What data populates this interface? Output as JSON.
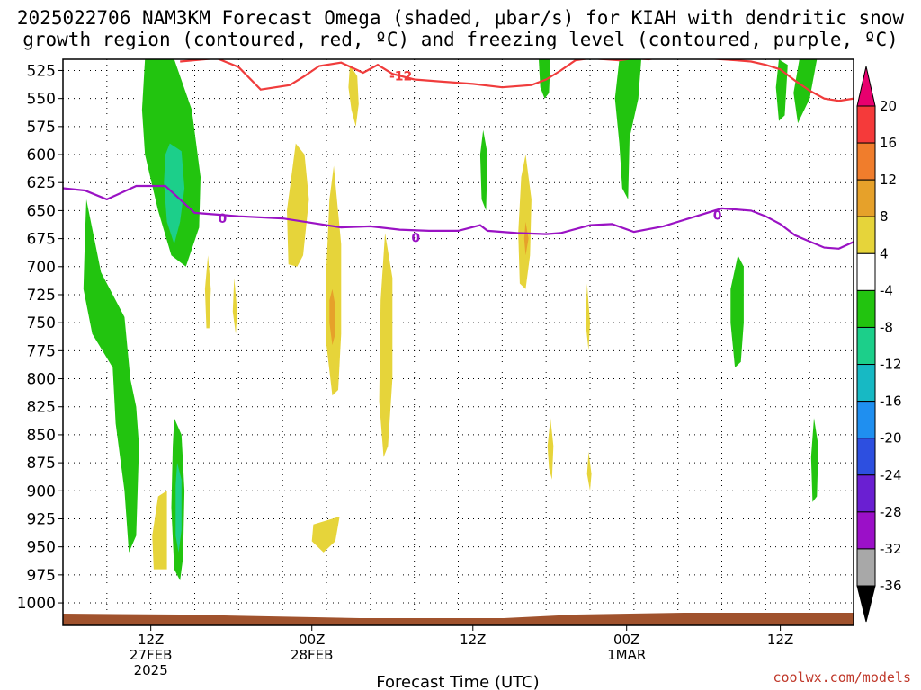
{
  "header": {
    "title_line1": "2025022706 NAM3KM Forecast Omega (shaded, μbar/s) for KIAH with dendritic snow",
    "title_line2": "growth region (contoured, red, ºC) and freezing level (contoured, purple, ºC)"
  },
  "footer": {
    "credit": "coolwx.com/models"
  },
  "chart_data": {
    "type": "heatmap",
    "title": "2025022706 NAM3KM Forecast Omega (shaded, μbar/s) for KIAH with dendritic snow growth region (contoured, red, ºC) and freezing level (contoured, purple, ºC)",
    "xlabel": "Forecast Time (UTC)",
    "ylabel": "",
    "y_axis": {
      "scale": "pressure (inverted)",
      "ylim": [
        1020,
        515
      ],
      "tick_labels": [
        "525",
        "550",
        "575",
        "600",
        "625",
        "650",
        "675",
        "700",
        "725",
        "750",
        "775",
        "800",
        "825",
        "850",
        "875",
        "900",
        "925",
        "950",
        "975",
        "1000"
      ],
      "tick_values": [
        525,
        550,
        575,
        600,
        625,
        650,
        675,
        700,
        725,
        750,
        775,
        800,
        825,
        850,
        875,
        900,
        925,
        950,
        975,
        1000
      ]
    },
    "x_axis": {
      "unit": "forecast hour (from 2025-02-27 06Z)",
      "xlim": [
        0,
        54
      ],
      "ticks": [
        {
          "hour": 6,
          "label1": "12Z",
          "label2": "27FEB",
          "label3": "2025"
        },
        {
          "hour": 17,
          "label1": "00Z",
          "label2": "28FEB",
          "label3": ""
        },
        {
          "hour": 28,
          "label1": "12Z",
          "label2": "",
          "label3": ""
        },
        {
          "hour": 38.5,
          "label1": "00Z",
          "label2": "1MAR",
          "label3": ""
        },
        {
          "hour": 49,
          "label1": "12Z",
          "label2": "",
          "label3": ""
        }
      ]
    },
    "grid": true,
    "colorbar": {
      "unit": "μbar/s",
      "levels": [
        "20",
        "16",
        "12",
        "8",
        "4",
        "-4",
        "-8",
        "-12",
        "-16",
        "-20",
        "-24",
        "-28",
        "-32",
        "-36"
      ],
      "colors": [
        "#e8006e",
        "#f53a3a",
        "#f07d2c",
        "#e6a12a",
        "#e6d43a",
        "#ffffff",
        "#22c40f",
        "#1ccf8a",
        "#17b9c4",
        "#1f8ff0",
        "#2d4fe0",
        "#6a1fd2",
        "#9b10c8",
        "#a8a8a8",
        "#000000"
      ]
    },
    "freezing_level": {
      "label": "0",
      "color": "#9a12c4",
      "points": [
        [
          0,
          630
        ],
        [
          1.5,
          632
        ],
        [
          3,
          640
        ],
        [
          5,
          628
        ],
        [
          7,
          628
        ],
        [
          9,
          652
        ],
        [
          12,
          655
        ],
        [
          15,
          657
        ],
        [
          17,
          661
        ],
        [
          19,
          665
        ],
        [
          21,
          664
        ],
        [
          23,
          667
        ],
        [
          25,
          668
        ],
        [
          27,
          668
        ],
        [
          28.5,
          663
        ],
        [
          29,
          668
        ],
        [
          31,
          670
        ],
        [
          33,
          671
        ],
        [
          34,
          670
        ],
        [
          36,
          663
        ],
        [
          37.5,
          662
        ],
        [
          39,
          669
        ],
        [
          41,
          664
        ],
        [
          43,
          656
        ],
        [
          45,
          648
        ],
        [
          47,
          650
        ],
        [
          48,
          655
        ],
        [
          49,
          662
        ],
        [
          50,
          672
        ],
        [
          52,
          683
        ],
        [
          53,
          684
        ],
        [
          54,
          678
        ]
      ]
    },
    "dgz_contour": {
      "label": "-12",
      "color": "#f03c3c",
      "points": [
        [
          8,
          517
        ],
        [
          10.5,
          514
        ],
        [
          12,
          522
        ],
        [
          13.5,
          542
        ],
        [
          15.5,
          538
        ],
        [
          16.5,
          530
        ],
        [
          17.5,
          521
        ],
        [
          19,
          518
        ],
        [
          20.5,
          527
        ],
        [
          21.5,
          520
        ],
        [
          22.5,
          528
        ],
        [
          24,
          533
        ],
        [
          26,
          535
        ],
        [
          28,
          537
        ],
        [
          30,
          540
        ],
        [
          32,
          538
        ],
        [
          33,
          533
        ],
        [
          34,
          525
        ],
        [
          35,
          516
        ],
        [
          36,
          514
        ],
        [
          38,
          516
        ],
        [
          39,
          514
        ],
        [
          40,
          515
        ],
        [
          41,
          513
        ],
        [
          42,
          514
        ],
        [
          43,
          514
        ],
        [
          44,
          514
        ],
        [
          45,
          515
        ],
        [
          46,
          516
        ],
        [
          47,
          517
        ],
        [
          48,
          520
        ],
        [
          49,
          524
        ],
        [
          50,
          534
        ],
        [
          51,
          543
        ],
        [
          52,
          550
        ],
        [
          53,
          552
        ],
        [
          54,
          550
        ]
      ]
    },
    "omega_regions": [
      {
        "omega": -6,
        "color": "#22c40f",
        "points": [
          [
            5.6,
            515
          ],
          [
            7.6,
            515
          ],
          [
            8.8,
            560
          ],
          [
            9.4,
            620
          ],
          [
            9.3,
            665
          ],
          [
            8.4,
            700
          ],
          [
            7.4,
            690
          ],
          [
            6.5,
            650
          ],
          [
            5.6,
            600
          ],
          [
            5.4,
            560
          ]
        ]
      },
      {
        "omega": -10,
        "color": "#1ccf8a",
        "points": [
          [
            7.3,
            590
          ],
          [
            8.1,
            597
          ],
          [
            8.3,
            630
          ],
          [
            8.0,
            660
          ],
          [
            7.6,
            680
          ],
          [
            7.1,
            660
          ],
          [
            6.9,
            625
          ],
          [
            7.0,
            600
          ]
        ]
      },
      {
        "omega": -6,
        "color": "#22c40f",
        "points": [
          [
            1.6,
            640
          ],
          [
            2.6,
            705
          ],
          [
            4.2,
            745
          ],
          [
            4.6,
            800
          ],
          [
            5.0,
            825
          ],
          [
            5.2,
            860
          ],
          [
            5.0,
            940
          ],
          [
            4.5,
            955
          ],
          [
            4.2,
            900
          ],
          [
            3.6,
            840
          ],
          [
            3.4,
            790
          ],
          [
            2.0,
            760
          ],
          [
            1.4,
            720
          ],
          [
            1.5,
            675
          ]
        ]
      },
      {
        "omega": -6,
        "color": "#22c40f",
        "points": [
          [
            7.6,
            835
          ],
          [
            8.1,
            850
          ],
          [
            8.3,
            900
          ],
          [
            8.2,
            960
          ],
          [
            8.0,
            980
          ],
          [
            7.6,
            970
          ],
          [
            7.4,
            915
          ],
          [
            7.5,
            860
          ]
        ]
      },
      {
        "omega": -10,
        "color": "#1ccf8a",
        "points": [
          [
            7.8,
            875
          ],
          [
            8.1,
            890
          ],
          [
            8.1,
            935
          ],
          [
            7.9,
            955
          ],
          [
            7.7,
            940
          ],
          [
            7.7,
            895
          ]
        ]
      },
      {
        "omega": -6,
        "color": "#22c40f",
        "points": [
          [
            32.5,
            515
          ],
          [
            33.3,
            515
          ],
          [
            33.2,
            545
          ],
          [
            32.9,
            550
          ],
          [
            32.6,
            540
          ]
        ]
      },
      {
        "omega": -6,
        "color": "#22c40f",
        "points": [
          [
            38,
            515
          ],
          [
            39.5,
            515
          ],
          [
            39.3,
            550
          ],
          [
            38.7,
            585
          ],
          [
            38.6,
            640
          ],
          [
            38.2,
            630
          ],
          [
            38.0,
            590
          ],
          [
            37.7,
            550
          ]
        ]
      },
      {
        "omega": -6,
        "color": "#22c40f",
        "points": [
          [
            28.7,
            578
          ],
          [
            29.0,
            600
          ],
          [
            28.9,
            650
          ],
          [
            28.6,
            640
          ],
          [
            28.5,
            600
          ]
        ]
      },
      {
        "omega": -6,
        "color": "#22c40f",
        "points": [
          [
            48.9,
            515
          ],
          [
            49.5,
            520
          ],
          [
            49.3,
            565
          ],
          [
            48.9,
            570
          ],
          [
            48.7,
            540
          ]
        ]
      },
      {
        "omega": -6,
        "color": "#22c40f",
        "points": [
          [
            50.3,
            515
          ],
          [
            51.5,
            515
          ],
          [
            51.0,
            550
          ],
          [
            50.2,
            572
          ],
          [
            49.9,
            545
          ]
        ]
      },
      {
        "omega": -6,
        "color": "#22c40f",
        "points": [
          [
            46.1,
            690
          ],
          [
            46.5,
            700
          ],
          [
            46.5,
            750
          ],
          [
            46.3,
            785
          ],
          [
            45.9,
            790
          ],
          [
            45.6,
            750
          ],
          [
            45.6,
            720
          ]
        ]
      },
      {
        "omega": -6,
        "color": "#22c40f",
        "points": [
          [
            51.3,
            835
          ],
          [
            51.6,
            860
          ],
          [
            51.5,
            905
          ],
          [
            51.2,
            910
          ],
          [
            51.1,
            870
          ]
        ]
      },
      {
        "omega": 5,
        "color": "#e6d43a",
        "points": [
          [
            15.9,
            590
          ],
          [
            16.5,
            600
          ],
          [
            16.8,
            640
          ],
          [
            16.4,
            690
          ],
          [
            16.0,
            700
          ],
          [
            15.4,
            698
          ],
          [
            15.3,
            650
          ],
          [
            15.6,
            620
          ]
        ]
      },
      {
        "omega": 5,
        "color": "#e6d43a",
        "points": [
          [
            19.6,
            520
          ],
          [
            20.1,
            530
          ],
          [
            20.2,
            555
          ],
          [
            20.0,
            575
          ],
          [
            19.7,
            560
          ],
          [
            19.5,
            540
          ]
        ]
      },
      {
        "omega": 5,
        "color": "#e6d43a",
        "points": [
          [
            18.5,
            610
          ],
          [
            19.0,
            680
          ],
          [
            19.0,
            760
          ],
          [
            18.8,
            810
          ],
          [
            18.4,
            815
          ],
          [
            18.0,
            770
          ],
          [
            18.0,
            700
          ],
          [
            18.2,
            640
          ]
        ]
      },
      {
        "omega": 9,
        "color": "#e6a12a",
        "points": [
          [
            18.4,
            720
          ],
          [
            18.6,
            735
          ],
          [
            18.6,
            760
          ],
          [
            18.4,
            770
          ],
          [
            18.2,
            750
          ],
          [
            18.2,
            730
          ]
        ]
      },
      {
        "omega": 5,
        "color": "#e6d43a",
        "points": [
          [
            22.0,
            670
          ],
          [
            22.5,
            710
          ],
          [
            22.5,
            800
          ],
          [
            22.2,
            860
          ],
          [
            21.9,
            870
          ],
          [
            21.6,
            820
          ],
          [
            21.7,
            730
          ]
        ]
      },
      {
        "omega": 5,
        "color": "#e6d43a",
        "points": [
          [
            31.6,
            600
          ],
          [
            32.0,
            640
          ],
          [
            31.9,
            690
          ],
          [
            31.6,
            720
          ],
          [
            31.2,
            715
          ],
          [
            31.1,
            670
          ],
          [
            31.3,
            620
          ]
        ]
      },
      {
        "omega": 9,
        "color": "#e6a12a",
        "points": [
          [
            31.6,
            660
          ],
          [
            31.8,
            675
          ],
          [
            31.6,
            690
          ],
          [
            31.5,
            675
          ]
        ]
      },
      {
        "omega": 5,
        "color": "#e6d43a",
        "points": [
          [
            9.9,
            690
          ],
          [
            10.1,
            720
          ],
          [
            10.0,
            755
          ],
          [
            9.8,
            755
          ],
          [
            9.7,
            720
          ]
        ]
      },
      {
        "omega": 5,
        "color": "#e6d43a",
        "points": [
          [
            11.7,
            710
          ],
          [
            11.9,
            740
          ],
          [
            11.8,
            760
          ],
          [
            11.6,
            740
          ]
        ]
      },
      {
        "omega": 5,
        "color": "#e6d43a",
        "points": [
          [
            35.8,
            715
          ],
          [
            36.0,
            750
          ],
          [
            35.9,
            775
          ],
          [
            35.7,
            750
          ]
        ]
      },
      {
        "omega": 5,
        "color": "#e6d43a",
        "points": [
          [
            6.5,
            905
          ],
          [
            7.1,
            900
          ],
          [
            7.1,
            970
          ],
          [
            6.2,
            970
          ],
          [
            6.1,
            940
          ]
        ]
      },
      {
        "omega": 5,
        "color": "#e6d43a",
        "points": [
          [
            17.1,
            930
          ],
          [
            18.9,
            923
          ],
          [
            18.6,
            945
          ],
          [
            17.8,
            955
          ],
          [
            17.0,
            945
          ]
        ]
      },
      {
        "omega": 5,
        "color": "#e6d43a",
        "points": [
          [
            33.3,
            835
          ],
          [
            33.5,
            860
          ],
          [
            33.4,
            890
          ],
          [
            33.2,
            880
          ],
          [
            33.1,
            860
          ]
        ]
      },
      {
        "omega": 5,
        "color": "#e6d43a",
        "points": [
          [
            35.9,
            865
          ],
          [
            36.1,
            885
          ],
          [
            36.0,
            900
          ],
          [
            35.8,
            885
          ]
        ]
      }
    ]
  }
}
